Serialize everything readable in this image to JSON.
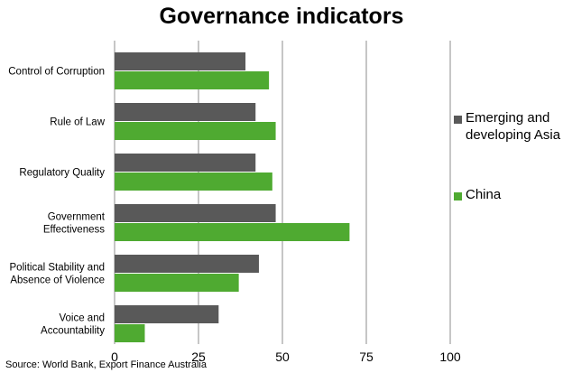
{
  "chart_data": {
    "type": "bar",
    "orientation": "horizontal",
    "title": "Governance indicators",
    "categories": [
      "Control of Corruption",
      "Rule of Law",
      "Regulatory Quality",
      "Government\nEffectiveness",
      "Political Stability and\nAbsence of Violence",
      "Voice and\nAccountability"
    ],
    "series": [
      {
        "name": "Emerging and developing Asia",
        "color": "#595959",
        "values": [
          39,
          42,
          42,
          48,
          43,
          31
        ]
      },
      {
        "name": "China",
        "color": "#4faa31",
        "values": [
          46,
          48,
          47,
          70,
          37,
          9
        ]
      }
    ],
    "x_ticks": [
      "0",
      "25",
      "50",
      "75",
      "100"
    ],
    "xlim": [
      0,
      100
    ],
    "grid": "vertical",
    "legend": "right",
    "source": "Source: World Bank, Export Finance Australia"
  }
}
